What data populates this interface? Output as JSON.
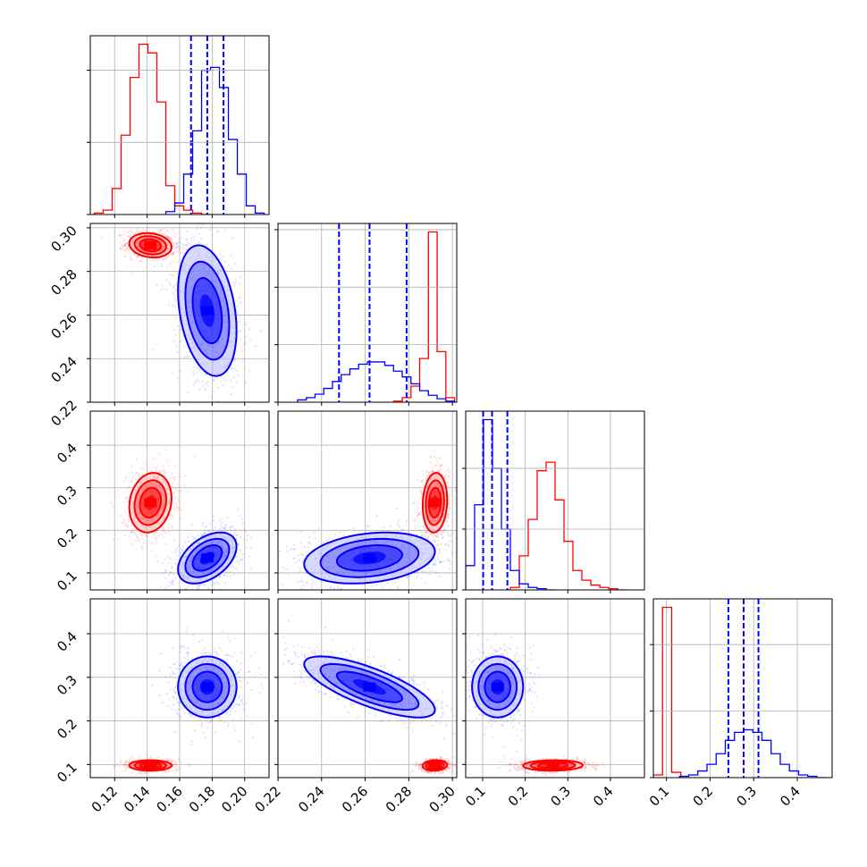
{
  "chart_data": {
    "type": "corner",
    "grid": true,
    "colors": {
      "red": "#ff0000",
      "blue": "#0000ff"
    },
    "parameters": [
      {
        "range": [
          0.105,
          0.215
        ],
        "ticks": [
          0.12,
          0.14,
          0.16,
          0.18,
          0.2
        ],
        "tick_labels": [
          "0.12",
          "0.14",
          "0.16",
          "0.18",
          "0.20"
        ]
      },
      {
        "range": [
          0.22,
          0.302
        ],
        "ticks": [
          0.22,
          0.24,
          0.26,
          0.28,
          0.3
        ],
        "tick_labels": [
          "0.22",
          "0.24",
          "0.26",
          "0.28",
          "0.30"
        ]
      },
      {
        "range": [
          0.06,
          0.48
        ],
        "ticks": [
          0.1,
          0.2,
          0.3,
          0.4
        ],
        "tick_labels": [
          "0.1",
          "0.2",
          "0.3",
          "0.4"
        ]
      },
      {
        "range": [
          0.07,
          0.48
        ],
        "ticks": [
          0.1,
          0.2,
          0.3,
          0.4
        ],
        "tick_labels": [
          "0.1",
          "0.2",
          "0.3",
          "0.4"
        ]
      }
    ],
    "series": [
      {
        "color": "red",
        "means": [
          0.142,
          0.292,
          0.265,
          0.098
        ],
        "sigmas": [
          0.0065,
          0.0028,
          0.035,
          0.006
        ],
        "correlations": [
          [
            0,
            1,
            -0.15
          ],
          [
            0,
            2,
            0.15
          ],
          [
            0,
            3,
            0.0
          ],
          [
            1,
            2,
            0.1
          ],
          [
            1,
            3,
            0.1
          ],
          [
            2,
            3,
            0.05
          ]
        ],
        "histograms": [
          {
            "edges": [
              0.1075,
              0.113,
              0.1185,
              0.124,
              0.1295,
              0.135,
              0.1405,
              0.146,
              0.1515,
              0.157,
              0.1625,
              0.168,
              0.1735,
              0.179
            ],
            "counts": [
              1,
              3,
              18,
              55,
              95,
              118,
              112,
              78,
              20,
              6,
              3,
              1,
              0
            ]
          },
          {
            "edges": [
              0.273,
              0.277,
              0.281,
              0.285,
              0.289,
              0.293,
              0.297,
              0.301
            ],
            "counts": [
              1,
              4,
              14,
              38,
              148,
              44,
              4
            ]
          },
          {
            "edges": [
              0.165,
              0.186,
              0.207,
              0.228,
              0.249,
              0.27,
              0.291,
              0.312,
              0.333,
              0.354,
              0.375,
              0.396,
              0.417,
              0.438
            ],
            "counts": [
              2,
              28,
              58,
              98,
              105,
              74,
              40,
              16,
              8,
              4,
              2,
              1,
              0
            ]
          },
          {
            "edges": [
              0.07,
              0.091,
              0.112,
              0.133,
              0.154
            ],
            "counts": [
              2,
              128,
              4,
              0
            ]
          }
        ]
      },
      {
        "color": "blue",
        "means": [
          0.177,
          0.262,
          0.135,
          0.278
        ],
        "sigmas": [
          0.009,
          0.015,
          0.03,
          0.035
        ],
        "correlations": [
          [
            0,
            1,
            -0.3
          ],
          [
            0,
            2,
            0.45
          ],
          [
            0,
            3,
            0.0
          ],
          [
            1,
            2,
            0.25
          ],
          [
            1,
            3,
            -0.75
          ],
          [
            2,
            3,
            0.0
          ]
        ],
        "quantiles": [
          [
            0.167,
            0.177,
            0.187
          ],
          [
            0.248,
            0.262,
            0.279
          ],
          [
            0.101,
            0.122,
            0.158
          ],
          [
            0.242,
            0.277,
            0.311
          ]
        ],
        "histograms": [
          {
            "edges": [
              0.1515,
              0.157,
              0.1625,
              0.168,
              0.1735,
              0.179,
              0.1845,
              0.19,
              0.1955,
              0.201,
              0.2065,
              0.212
            ],
            "counts": [
              2,
              8,
              28,
              58,
              100,
              102,
              88,
              52,
              28,
              6,
              1
            ]
          },
          {
            "edges": [
              0.229,
              0.233,
              0.237,
              0.241,
              0.245,
              0.249,
              0.253,
              0.257,
              0.261,
              0.265,
              0.269,
              0.273,
              0.277,
              0.281,
              0.285,
              0.289,
              0.293,
              0.297,
              0.301
            ],
            "counts": [
              2,
              4,
              7,
              12,
              18,
              24,
              29,
              33,
              35,
              35,
              32,
              27,
              22,
              16,
              10,
              6,
              3,
              1
            ]
          },
          {
            "edges": [
              0.06,
              0.081,
              0.102,
              0.123,
              0.144,
              0.165,
              0.186,
              0.207,
              0.228,
              0.249,
              0.27
            ],
            "counts": [
              20,
              70,
              140,
              100,
              50,
              16,
              5,
              2,
              1,
              0
            ]
          },
          {
            "edges": [
              0.13,
              0.151,
              0.172,
              0.193,
              0.214,
              0.235,
              0.256,
              0.277,
              0.298,
              0.319,
              0.34,
              0.361,
              0.382,
              0.403,
              0.424,
              0.445,
              0.466
            ],
            "counts": [
              1,
              2,
              5,
              10,
              18,
              28,
              34,
              36,
              34,
              28,
              18,
              10,
              5,
              2,
              1,
              0
            ]
          }
        ]
      }
    ]
  }
}
